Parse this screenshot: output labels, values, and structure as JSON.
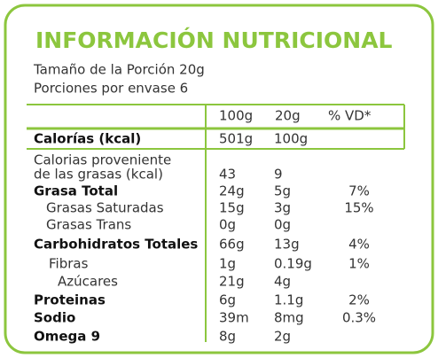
{
  "header": {
    "title": "INFORMACIÓN NUTRICIONAL",
    "serving": [
      "Tamaño de la Porción 20g",
      "Porciones por envase 6"
    ]
  },
  "table": {
    "columns": [
      "100g",
      "20g",
      "% VD*"
    ],
    "rows": [
      {
        "label": "Calorías (kcal)",
        "values": [
          "501g",
          "100g"
        ]
      },
      {
        "label": [
          "Calorias proveniente",
          "de las grasas (kcal)"
        ],
        "values": [
          "43",
          "9"
        ]
      },
      {
        "label": "Grasa Total",
        "values": [
          "24g",
          "5g",
          "7%"
        ]
      },
      {
        "label": "Grasas Saturadas",
        "values": [
          "15g",
          "3g",
          "15%"
        ]
      },
      {
        "label": "Grasas Trans",
        "values": [
          "0g",
          "0g"
        ]
      },
      {
        "label": "Carbohidratos Totales",
        "values": [
          "66g",
          "13g",
          "4%"
        ]
      },
      {
        "label": "Fibras",
        "values": [
          "1g",
          "0.19g",
          "1%"
        ]
      },
      {
        "label": "Azúcares",
        "values": [
          "21g",
          "4g"
        ]
      },
      {
        "label": "Proteinas",
        "values": [
          "6g",
          "1.1g",
          "2%"
        ]
      },
      {
        "label": "Sodio",
        "values": [
          "39m",
          "8mg",
          "0.3%"
        ]
      },
      {
        "label": "Omega 9",
        "values": [
          "8g",
          "2g"
        ]
      }
    ]
  }
}
